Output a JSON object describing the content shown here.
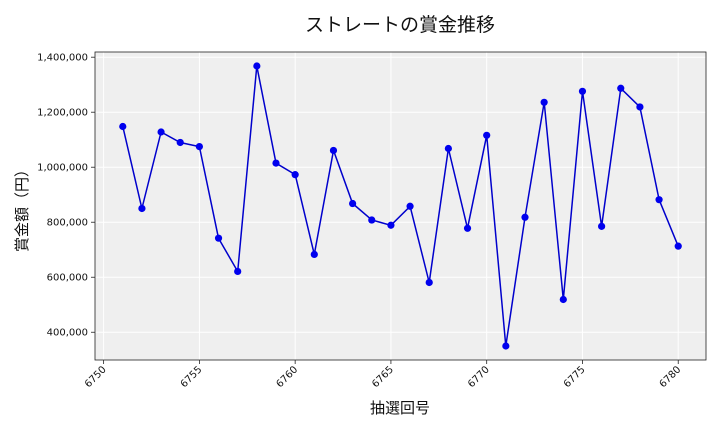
{
  "chart_data": {
    "type": "line",
    "title": "ストレートの賞金推移",
    "xlabel": "抽選回号",
    "ylabel": "賞金額（円）",
    "x": [
      6751,
      6752,
      6753,
      6754,
      6755,
      6756,
      6757,
      6758,
      6759,
      6760,
      6761,
      6762,
      6763,
      6764,
      6765,
      6766,
      6767,
      6768,
      6769,
      6770,
      6771,
      6772,
      6773,
      6774,
      6775,
      6776,
      6777,
      6778,
      6779,
      6780
    ],
    "y": [
      1148000,
      850000,
      1128000,
      1090000,
      1075000,
      742000,
      621000,
      1368000,
      1015000,
      973000,
      683000,
      1061000,
      868000,
      808000,
      789000,
      858000,
      581000,
      1068000,
      778000,
      1116000,
      350000,
      818000,
      1236000,
      519000,
      1276000,
      785000,
      1287000,
      1219000,
      882000,
      713000
    ],
    "xlim": [
      6749.55,
      6781.45
    ],
    "ylim": [
      299100,
      1418900
    ],
    "x_ticks": [
      6750,
      6755,
      6760,
      6765,
      6770,
      6775,
      6780
    ],
    "x_tick_labels": [
      "6750",
      "6755",
      "6760",
      "6765",
      "6770",
      "6775",
      "6780"
    ],
    "y_ticks": [
      400000,
      600000,
      800000,
      1000000,
      1200000,
      1400000
    ],
    "y_tick_labels": [
      "400,000",
      "600,000",
      "800,000",
      "1,000,000",
      "1,200,000",
      "1,400,000"
    ],
    "grid": true,
    "line_color": "#0000cc",
    "marker_color": "#0000ee",
    "background_color": "#efefef"
  }
}
